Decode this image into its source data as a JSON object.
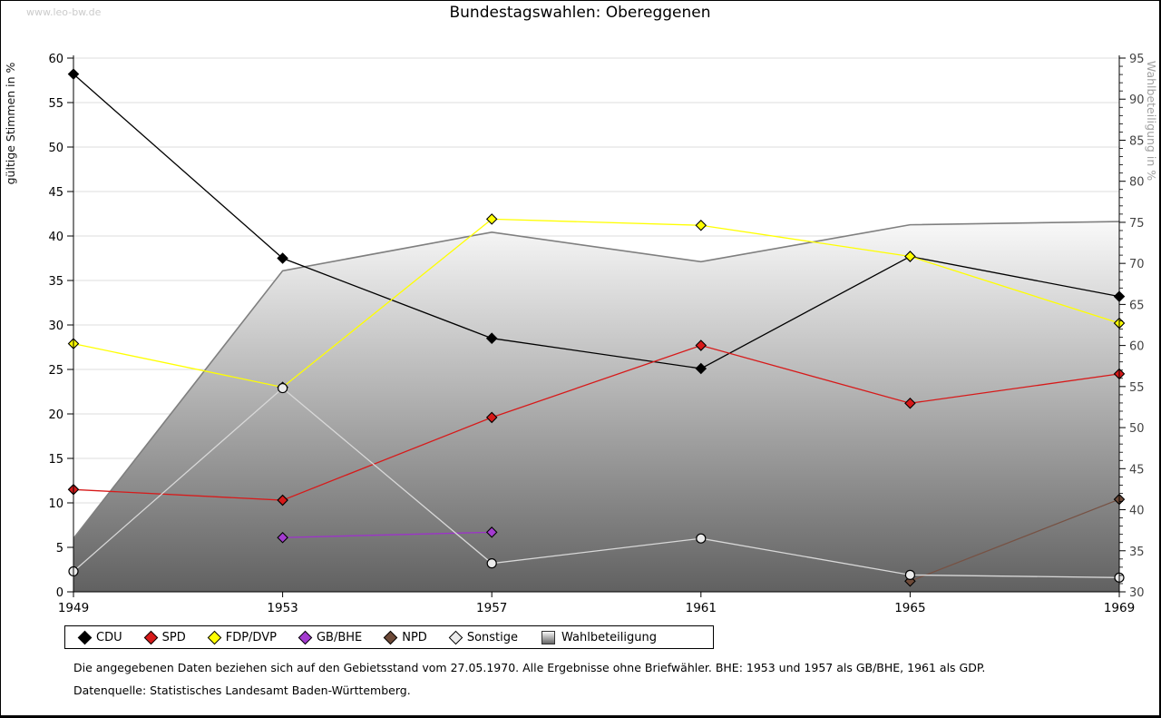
{
  "watermark": "www.leo-bw.de",
  "title": "Bundestagswahlen: Obereggenen",
  "footnotes": {
    "line1": "Die angegebenen Daten beziehen sich auf den Gebietsstand vom 27.05.1970. Alle Ergebnisse ohne Briefwähler. BHE: 1953 und 1957 als GB/BHE, 1961 als GDP.",
    "line2": "Datenquelle: Statistisches Landesamt Baden-Württemberg."
  },
  "chart_data": {
    "type": "line",
    "x": [
      1949,
      1953,
      1957,
      1961,
      1965,
      1969
    ],
    "left_axis": {
      "label": "gültige Stimmen in %",
      "min": 0,
      "max": 60,
      "tick_step": 5
    },
    "right_axis": {
      "label": "Wahlbeteiligung in %",
      "min": 30,
      "max": 95,
      "tick_step": 5,
      "minor_tick_step": 1
    },
    "grid": true,
    "legend_position": "bottom",
    "colors": {
      "grid": "#dcdcdc",
      "axis": "#000000",
      "right_tick_label": "#444444",
      "right_axis_title": "#a0a0a0",
      "left_axis_title": "#111111",
      "area_line": "#7f7f7f",
      "area_fill_top": "#f9f9f9",
      "area_fill_bottom": "#616161"
    },
    "series": [
      {
        "name": "CDU",
        "axis": "left",
        "marker": "diamond",
        "color": "#000000",
        "fill": "#000000",
        "values": [
          58.2,
          37.5,
          28.5,
          25.1,
          37.7,
          33.2
        ]
      },
      {
        "name": "SPD",
        "axis": "left",
        "marker": "diamond",
        "color": "#d71a1a",
        "fill": "#d71a1a",
        "values": [
          11.5,
          10.3,
          19.6,
          27.7,
          21.2,
          24.5
        ]
      },
      {
        "name": "FDP/DVP",
        "axis": "left",
        "marker": "diamond",
        "color": "#ffff00",
        "fill": "#ffff00",
        "values": [
          27.9,
          23.0,
          41.9,
          41.2,
          37.7,
          30.2
        ]
      },
      {
        "name": "GB/BHE",
        "axis": "left",
        "marker": "diamond",
        "color": "#9c34c8",
        "fill": "#a43bd0",
        "values": [
          null,
          6.1,
          6.7,
          null,
          null,
          null
        ]
      },
      {
        "name": "NPD",
        "axis": "left",
        "marker": "diamond",
        "color": "#775244",
        "fill": "#6e4a38",
        "values": [
          null,
          null,
          null,
          null,
          1.2,
          10.4
        ]
      },
      {
        "name": "Sonstige",
        "axis": "left",
        "marker": "circle",
        "color": "#d8d8d8",
        "fill": "#ebebeb",
        "values": [
          2.3,
          22.9,
          3.2,
          6.0,
          1.9,
          1.6
        ]
      },
      {
        "name": "Wahlbeteiligung",
        "axis": "right",
        "type": "area",
        "values": [
          36.5,
          69.1,
          73.8,
          70.2,
          74.7,
          75.1
        ]
      }
    ]
  }
}
